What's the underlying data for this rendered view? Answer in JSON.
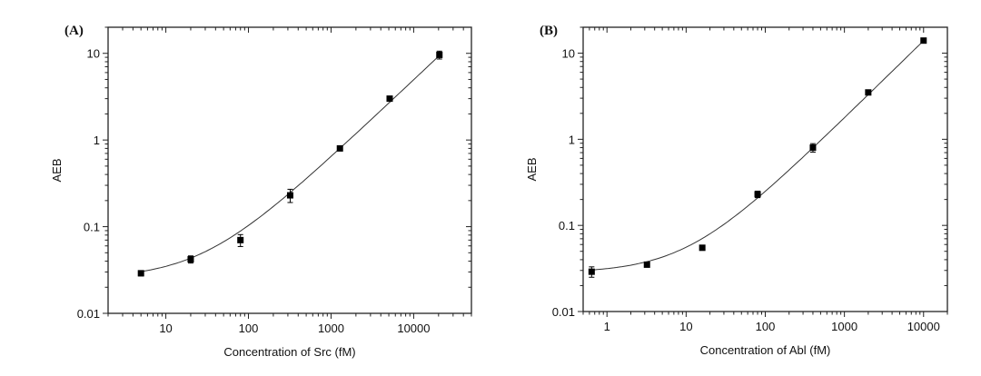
{
  "chart_data": [
    {
      "type": "scatter",
      "panel_label": "(A)",
      "xlabel": "Concentration of Src (fM)",
      "ylabel": "AEB",
      "xscale": "log",
      "yscale": "log",
      "xlim": [
        2,
        50000
      ],
      "ylim": [
        0.01,
        20
      ],
      "xticks": [
        10,
        100,
        1000,
        10000
      ],
      "xtick_labels": [
        "10",
        "100",
        "1000",
        "10000"
      ],
      "yticks": [
        0.01,
        0.1,
        1,
        10
      ],
      "ytick_labels": [
        "0.01",
        "0.1",
        "1",
        "10"
      ],
      "grid": false,
      "fit_line": true,
      "x": [
        5,
        20,
        80,
        320,
        1280,
        5120,
        20480
      ],
      "y": [
        0.029,
        0.042,
        0.07,
        0.23,
        0.8,
        3.0,
        9.6
      ],
      "yerr": [
        0.002,
        0.004,
        0.011,
        0.04,
        0.05,
        0.2,
        1.0
      ],
      "marker_color": "#000000"
    },
    {
      "type": "scatter",
      "panel_label": "(B)",
      "xlabel": "Concentration of Abl (fM)",
      "ylabel": "AEB",
      "xscale": "log",
      "yscale": "log",
      "xlim": [
        0.5,
        20000
      ],
      "ylim": [
        0.01,
        20
      ],
      "xticks": [
        1,
        10,
        100,
        1000,
        10000
      ],
      "xtick_labels": [
        "1",
        "10",
        "100",
        "1000",
        "10000"
      ],
      "yticks": [
        0.01,
        0.1,
        1,
        10
      ],
      "ytick_labels": [
        "0.01",
        "0.1",
        "1",
        "10"
      ],
      "grid": false,
      "fit_line": true,
      "x": [
        0.64,
        3.2,
        16,
        80,
        400,
        2000,
        10000
      ],
      "y": [
        0.029,
        0.035,
        0.055,
        0.23,
        0.8,
        3.5,
        14
      ],
      "yerr": [
        0.004,
        0.002,
        0.003,
        0.02,
        0.09,
        0.2,
        0.8
      ],
      "marker_color": "#000000"
    }
  ]
}
